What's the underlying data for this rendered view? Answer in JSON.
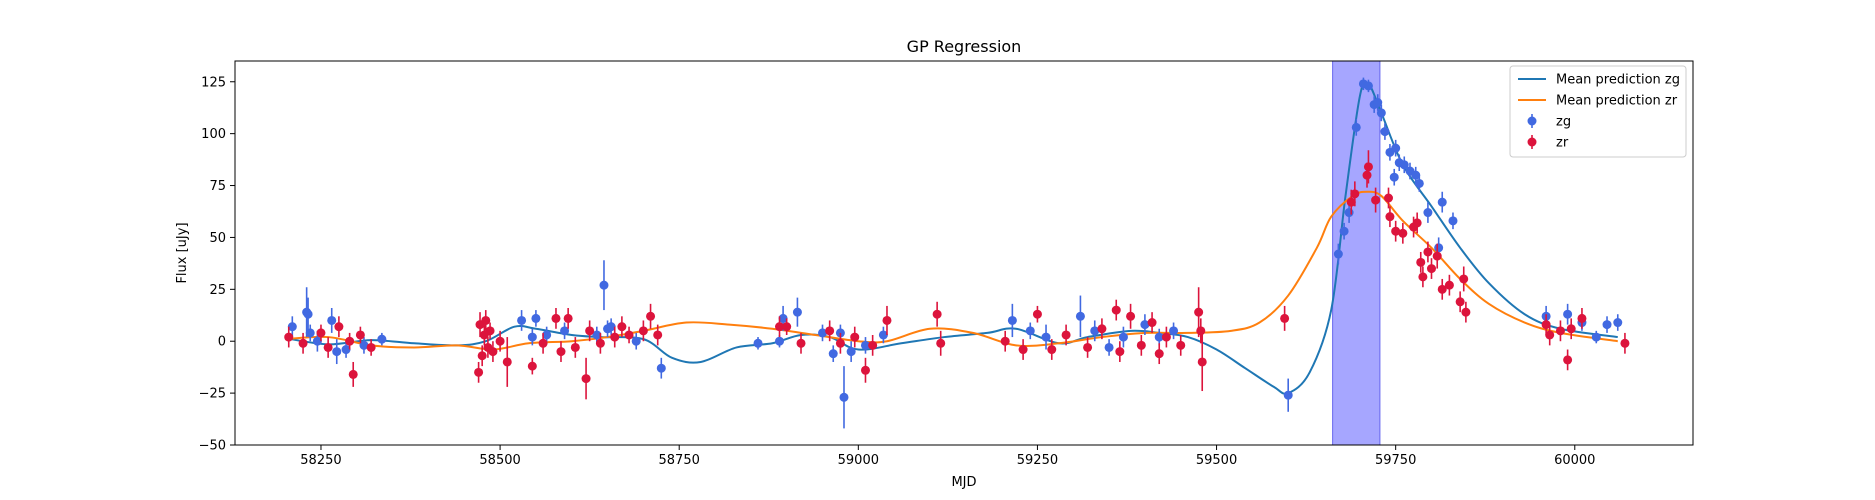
{
  "chart_data": {
    "type": "scatter",
    "title": "GP Regression",
    "xlabel": "MJD",
    "ylabel": "Flux [uJy]",
    "xlim": [
      58130,
      60165
    ],
    "ylim": [
      -50,
      135
    ],
    "xticks": [
      58250,
      58500,
      58750,
      59000,
      59250,
      59500,
      59750,
      60000
    ],
    "yticks": [
      -50,
      -25,
      0,
      25,
      50,
      75,
      100,
      125
    ],
    "grid": false,
    "legend": "top-right",
    "shaded_region": {
      "x_range": [
        59662,
        59728
      ],
      "color": "#a6a6ff"
    },
    "legend_entries": [
      "Mean prediction zg",
      "Mean prediction zr",
      "zg",
      "zr"
    ],
    "series": [
      {
        "name": "Mean prediction zg",
        "kind": "line",
        "color": "#1f77b4",
        "x": [
          58200,
          58260,
          58320,
          58380,
          58440,
          58480,
          58520,
          58550,
          58600,
          58640,
          58700,
          58740,
          58780,
          58830,
          58880,
          58920,
          58960,
          59000,
          59060,
          59120,
          59180,
          59220,
          59280,
          59320,
          59380,
          59420,
          59460,
          59500,
          59540,
          59580,
          59600,
          59630,
          59660,
          59680,
          59700,
          59712,
          59730,
          59760,
          59800,
          59840,
          59880,
          59930,
          59980,
          60060
        ],
        "y": [
          1.5,
          -1.5,
          0.5,
          -1,
          -2,
          0,
          7,
          6,
          3,
          2,
          1,
          -8,
          -10,
          -3,
          -1,
          3,
          2,
          -4,
          -1,
          2,
          4,
          6,
          -1,
          2,
          5,
          4,
          2,
          -4,
          -13,
          -22,
          -25,
          -15,
          15,
          70,
          118,
          124,
          110,
          85,
          65,
          45,
          28,
          13,
          6,
          2
        ]
      },
      {
        "name": "Mean prediction zr",
        "kind": "line",
        "color": "#ff7f0e",
        "x": [
          58200,
          58260,
          58320,
          58380,
          58440,
          58490,
          58540,
          58600,
          58650,
          58700,
          58760,
          58820,
          58880,
          58940,
          59000,
          59040,
          59100,
          59160,
          59220,
          59280,
          59340,
          59400,
          59460,
          59520,
          59560,
          59600,
          59640,
          59660,
          59690,
          59710,
          59730,
          59760,
          59800,
          59840,
          59880,
          59930,
          59980,
          60060
        ],
        "y": [
          1,
          2,
          -2,
          -3,
          -2,
          -4,
          -1,
          0,
          2,
          5,
          9,
          8,
          6,
          3,
          0,
          0,
          6,
          4,
          -2,
          -1,
          2,
          4,
          4,
          5,
          9,
          22,
          45,
          60,
          70,
          72,
          70,
          58,
          45,
          30,
          18,
          9,
          4,
          0
        ]
      },
      {
        "name": "zg",
        "kind": "errorbar",
        "color": "#4169e1",
        "points": [
          {
            "x": 58210,
            "y": 7,
            "err": 5
          },
          {
            "x": 58230,
            "y": 14,
            "err": 12
          },
          {
            "x": 58232,
            "y": 13,
            "err": 8
          },
          {
            "x": 58235,
            "y": 4,
            "err": 4
          },
          {
            "x": 58245,
            "y": 0,
            "err": 5
          },
          {
            "x": 58265,
            "y": 10,
            "err": 6
          },
          {
            "x": 58272,
            "y": -5,
            "err": 6
          },
          {
            "x": 58285,
            "y": -4,
            "err": 4
          },
          {
            "x": 58310,
            "y": -2,
            "err": 4
          },
          {
            "x": 58335,
            "y": 1,
            "err": 3
          },
          {
            "x": 58530,
            "y": 10,
            "err": 5
          },
          {
            "x": 58550,
            "y": 11,
            "err": 4
          },
          {
            "x": 58545,
            "y": 2,
            "err": 4
          },
          {
            "x": 58565,
            "y": 3,
            "err": 4
          },
          {
            "x": 58590,
            "y": 5,
            "err": 4
          },
          {
            "x": 58635,
            "y": 3,
            "err": 4
          },
          {
            "x": 58645,
            "y": 27,
            "err": 12
          },
          {
            "x": 58650,
            "y": 6,
            "err": 4
          },
          {
            "x": 58655,
            "y": 7,
            "err": 4
          },
          {
            "x": 58690,
            "y": 0,
            "err": 4
          },
          {
            "x": 58725,
            "y": -13,
            "err": 5
          },
          {
            "x": 58860,
            "y": -1,
            "err": 3
          },
          {
            "x": 58890,
            "y": 0,
            "err": 3
          },
          {
            "x": 58895,
            "y": 11,
            "err": 6
          },
          {
            "x": 58915,
            "y": 14,
            "err": 7
          },
          {
            "x": 58950,
            "y": 4,
            "err": 4
          },
          {
            "x": 58965,
            "y": -6,
            "err": 4
          },
          {
            "x": 58975,
            "y": 4,
            "err": 4
          },
          {
            "x": 58980,
            "y": -27,
            "err": 15
          },
          {
            "x": 58990,
            "y": -5,
            "err": 5
          },
          {
            "x": 59010,
            "y": -2,
            "err": 4
          },
          {
            "x": 59035,
            "y": 3,
            "err": 4
          },
          {
            "x": 59215,
            "y": 10,
            "err": 8
          },
          {
            "x": 59240,
            "y": 5,
            "err": 4
          },
          {
            "x": 59262,
            "y": 2,
            "err": 6
          },
          {
            "x": 59310,
            "y": 12,
            "err": 10
          },
          {
            "x": 59330,
            "y": 5,
            "err": 5
          },
          {
            "x": 59350,
            "y": -3,
            "err": 4
          },
          {
            "x": 59370,
            "y": 2,
            "err": 5
          },
          {
            "x": 59400,
            "y": 8,
            "err": 5
          },
          {
            "x": 59420,
            "y": 2,
            "err": 4
          },
          {
            "x": 59440,
            "y": 5,
            "err": 4
          },
          {
            "x": 59600,
            "y": -26,
            "err": 8
          },
          {
            "x": 59670,
            "y": 42,
            "err": 5
          },
          {
            "x": 59678,
            "y": 53,
            "err": 4
          },
          {
            "x": 59685,
            "y": 62,
            "err": 5
          },
          {
            "x": 59695,
            "y": 103,
            "err": 4
          },
          {
            "x": 59705,
            "y": 124,
            "err": 3
          },
          {
            "x": 59712,
            "y": 123,
            "err": 3
          },
          {
            "x": 59720,
            "y": 114,
            "err": 4
          },
          {
            "x": 59725,
            "y": 115,
            "err": 4
          },
          {
            "x": 59730,
            "y": 110,
            "err": 4
          },
          {
            "x": 59735,
            "y": 101,
            "err": 4
          },
          {
            "x": 59742,
            "y": 91,
            "err": 4
          },
          {
            "x": 59748,
            "y": 79,
            "err": 4
          },
          {
            "x": 59750,
            "y": 93,
            "err": 4
          },
          {
            "x": 59755,
            "y": 86,
            "err": 4
          },
          {
            "x": 59762,
            "y": 85,
            "err": 4
          },
          {
            "x": 59770,
            "y": 82,
            "err": 4
          },
          {
            "x": 59778,
            "y": 80,
            "err": 4
          },
          {
            "x": 59783,
            "y": 76,
            "err": 4
          },
          {
            "x": 59795,
            "y": 62,
            "err": 5
          },
          {
            "x": 59810,
            "y": 45,
            "err": 5
          },
          {
            "x": 59815,
            "y": 67,
            "err": 5
          },
          {
            "x": 59830,
            "y": 58,
            "err": 4
          },
          {
            "x": 59960,
            "y": 12,
            "err": 5
          },
          {
            "x": 59990,
            "y": 13,
            "err": 5
          },
          {
            "x": 60010,
            "y": 9,
            "err": 4
          },
          {
            "x": 60030,
            "y": 2,
            "err": 3
          },
          {
            "x": 60045,
            "y": 8,
            "err": 4
          },
          {
            "x": 60060,
            "y": 9,
            "err": 4
          }
        ]
      },
      {
        "name": "zr",
        "kind": "errorbar",
        "color": "#dc143c",
        "points": [
          {
            "x": 58205,
            "y": 2,
            "err": 5
          },
          {
            "x": 58225,
            "y": -1,
            "err": 5
          },
          {
            "x": 58250,
            "y": 4,
            "err": 4
          },
          {
            "x": 58260,
            "y": -3,
            "err": 5
          },
          {
            "x": 58275,
            "y": 7,
            "err": 5
          },
          {
            "x": 58290,
            "y": 0,
            "err": 4
          },
          {
            "x": 58295,
            "y": -16,
            "err": 6
          },
          {
            "x": 58305,
            "y": 3,
            "err": 4
          },
          {
            "x": 58320,
            "y": -3,
            "err": 4
          },
          {
            "x": 58470,
            "y": -15,
            "err": 5
          },
          {
            "x": 58472,
            "y": 8,
            "err": 6
          },
          {
            "x": 58475,
            "y": -7,
            "err": 5
          },
          {
            "x": 58478,
            "y": 3,
            "err": 5
          },
          {
            "x": 58480,
            "y": 10,
            "err": 5
          },
          {
            "x": 58483,
            "y": -3,
            "err": 5
          },
          {
            "x": 58486,
            "y": 5,
            "err": 4
          },
          {
            "x": 58490,
            "y": -5,
            "err": 5
          },
          {
            "x": 58500,
            "y": 0,
            "err": 5
          },
          {
            "x": 58510,
            "y": -10,
            "err": 12
          },
          {
            "x": 58545,
            "y": -12,
            "err": 4
          },
          {
            "x": 58560,
            "y": -1,
            "err": 5
          },
          {
            "x": 58578,
            "y": 11,
            "err": 5
          },
          {
            "x": 58585,
            "y": -5,
            "err": 5
          },
          {
            "x": 58595,
            "y": 11,
            "err": 5
          },
          {
            "x": 58605,
            "y": -3,
            "err": 5
          },
          {
            "x": 58620,
            "y": -18,
            "err": 10
          },
          {
            "x": 58625,
            "y": 5,
            "err": 5
          },
          {
            "x": 58640,
            "y": -1,
            "err": 5
          },
          {
            "x": 58660,
            "y": 2,
            "err": 5
          },
          {
            "x": 58670,
            "y": 7,
            "err": 5
          },
          {
            "x": 58680,
            "y": 3,
            "err": 4
          },
          {
            "x": 58700,
            "y": 5,
            "err": 5
          },
          {
            "x": 58710,
            "y": 12,
            "err": 6
          },
          {
            "x": 58720,
            "y": 3,
            "err": 5
          },
          {
            "x": 58890,
            "y": 7,
            "err": 5
          },
          {
            "x": 58900,
            "y": 7,
            "err": 4
          },
          {
            "x": 58920,
            "y": -1,
            "err": 5
          },
          {
            "x": 58960,
            "y": 5,
            "err": 5
          },
          {
            "x": 58975,
            "y": -1,
            "err": 5
          },
          {
            "x": 58995,
            "y": 2,
            "err": 5
          },
          {
            "x": 59010,
            "y": -14,
            "err": 6
          },
          {
            "x": 59020,
            "y": -2,
            "err": 5
          },
          {
            "x": 59040,
            "y": 10,
            "err": 7
          },
          {
            "x": 59110,
            "y": 13,
            "err": 6
          },
          {
            "x": 59115,
            "y": -1,
            "err": 6
          },
          {
            "x": 59205,
            "y": 0,
            "err": 5
          },
          {
            "x": 59230,
            "y": -4,
            "err": 5
          },
          {
            "x": 59250,
            "y": 13,
            "err": 4
          },
          {
            "x": 59270,
            "y": -4,
            "err": 5
          },
          {
            "x": 59290,
            "y": 3,
            "err": 5
          },
          {
            "x": 59320,
            "y": -3,
            "err": 5
          },
          {
            "x": 59340,
            "y": 6,
            "err": 5
          },
          {
            "x": 59360,
            "y": 15,
            "err": 5
          },
          {
            "x": 59365,
            "y": -5,
            "err": 5
          },
          {
            "x": 59380,
            "y": 12,
            "err": 6
          },
          {
            "x": 59395,
            "y": -2,
            "err": 5
          },
          {
            "x": 59410,
            "y": 9,
            "err": 5
          },
          {
            "x": 59420,
            "y": -6,
            "err": 5
          },
          {
            "x": 59430,
            "y": 2,
            "err": 5
          },
          {
            "x": 59450,
            "y": -2,
            "err": 5
          },
          {
            "x": 59475,
            "y": 14,
            "err": 12
          },
          {
            "x": 59478,
            "y": 5,
            "err": 6
          },
          {
            "x": 59480,
            "y": -10,
            "err": 14
          },
          {
            "x": 59595,
            "y": 11,
            "err": 6
          },
          {
            "x": 59688,
            "y": 67,
            "err": 6
          },
          {
            "x": 59693,
            "y": 71,
            "err": 6
          },
          {
            "x": 59710,
            "y": 80,
            "err": 6
          },
          {
            "x": 59712,
            "y": 84,
            "err": 8
          },
          {
            "x": 59722,
            "y": 68,
            "err": 6
          },
          {
            "x": 59740,
            "y": 69,
            "err": 5
          },
          {
            "x": 59742,
            "y": 60,
            "err": 5
          },
          {
            "x": 59750,
            "y": 53,
            "err": 5
          },
          {
            "x": 59760,
            "y": 52,
            "err": 5
          },
          {
            "x": 59775,
            "y": 55,
            "err": 5
          },
          {
            "x": 59780,
            "y": 57,
            "err": 5
          },
          {
            "x": 59785,
            "y": 38,
            "err": 5
          },
          {
            "x": 59788,
            "y": 31,
            "err": 5
          },
          {
            "x": 59795,
            "y": 43,
            "err": 5
          },
          {
            "x": 59800,
            "y": 35,
            "err": 5
          },
          {
            "x": 59808,
            "y": 41,
            "err": 6
          },
          {
            "x": 59815,
            "y": 25,
            "err": 5
          },
          {
            "x": 59825,
            "y": 27,
            "err": 5
          },
          {
            "x": 59840,
            "y": 19,
            "err": 5
          },
          {
            "x": 59845,
            "y": 30,
            "err": 6
          },
          {
            "x": 59848,
            "y": 14,
            "err": 5
          },
          {
            "x": 59960,
            "y": 8,
            "err": 5
          },
          {
            "x": 59965,
            "y": 3,
            "err": 5
          },
          {
            "x": 59980,
            "y": 5,
            "err": 5
          },
          {
            "x": 59995,
            "y": 6,
            "err": 5
          },
          {
            "x": 59990,
            "y": -9,
            "err": 5
          },
          {
            "x": 60010,
            "y": 11,
            "err": 5
          },
          {
            "x": 60070,
            "y": -1,
            "err": 5
          }
        ]
      }
    ]
  }
}
